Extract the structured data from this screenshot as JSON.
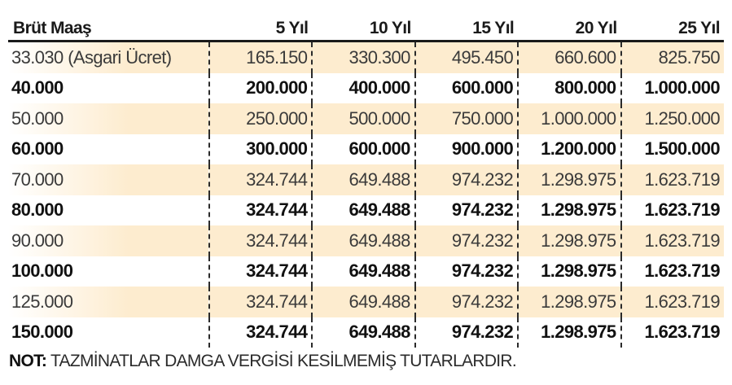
{
  "table": {
    "headers": [
      "Brüt Maaş",
      "5 Yıl",
      "10 Yıl",
      "15 Yıl",
      "20 Yıl",
      "25 Yıl"
    ],
    "rows": [
      [
        "33.030 (Asgari Ücret)",
        "165.150",
        "330.300",
        "495.450",
        "660.600",
        "825.750"
      ],
      [
        "40.000",
        "200.000",
        "400.000",
        "600.000",
        "800.000",
        "1.000.000"
      ],
      [
        "50.000",
        "250.000",
        "500.000",
        "750.000",
        "1.000.000",
        "1.250.000"
      ],
      [
        "60.000",
        "300.000",
        "600.000",
        "900.000",
        "1.200.000",
        "1.500.000"
      ],
      [
        "70.000",
        "324.744",
        "649.488",
        "974.232",
        "1.298.975",
        "1.623.719"
      ],
      [
        "80.000",
        "324.744",
        "649.488",
        "974.232",
        "1.298.975",
        "1.623.719"
      ],
      [
        "90.000",
        "324.744",
        "649.488",
        "974.232",
        "1.298.975",
        "1.623.719"
      ],
      [
        "100.000",
        "324.744",
        "649.488",
        "974.232",
        "1.298.975",
        "1.623.719"
      ],
      [
        "125.000",
        "324.744",
        "649.488",
        "974.232",
        "1.298.975",
        "1.623.719"
      ],
      [
        "150.000",
        "324.744",
        "649.488",
        "974.232",
        "1.298.975",
        "1.623.719"
      ]
    ]
  },
  "note": {
    "label": "NOT:",
    "text": " TAZMİNATLAR DAMGA VERGİSİ KESİLMEMİŞ TUTARLARDIR."
  },
  "colors": {
    "light_row_bg": "#fdeccf",
    "bold_row_bg": "#ffffff",
    "text": "#1a1a1a"
  }
}
